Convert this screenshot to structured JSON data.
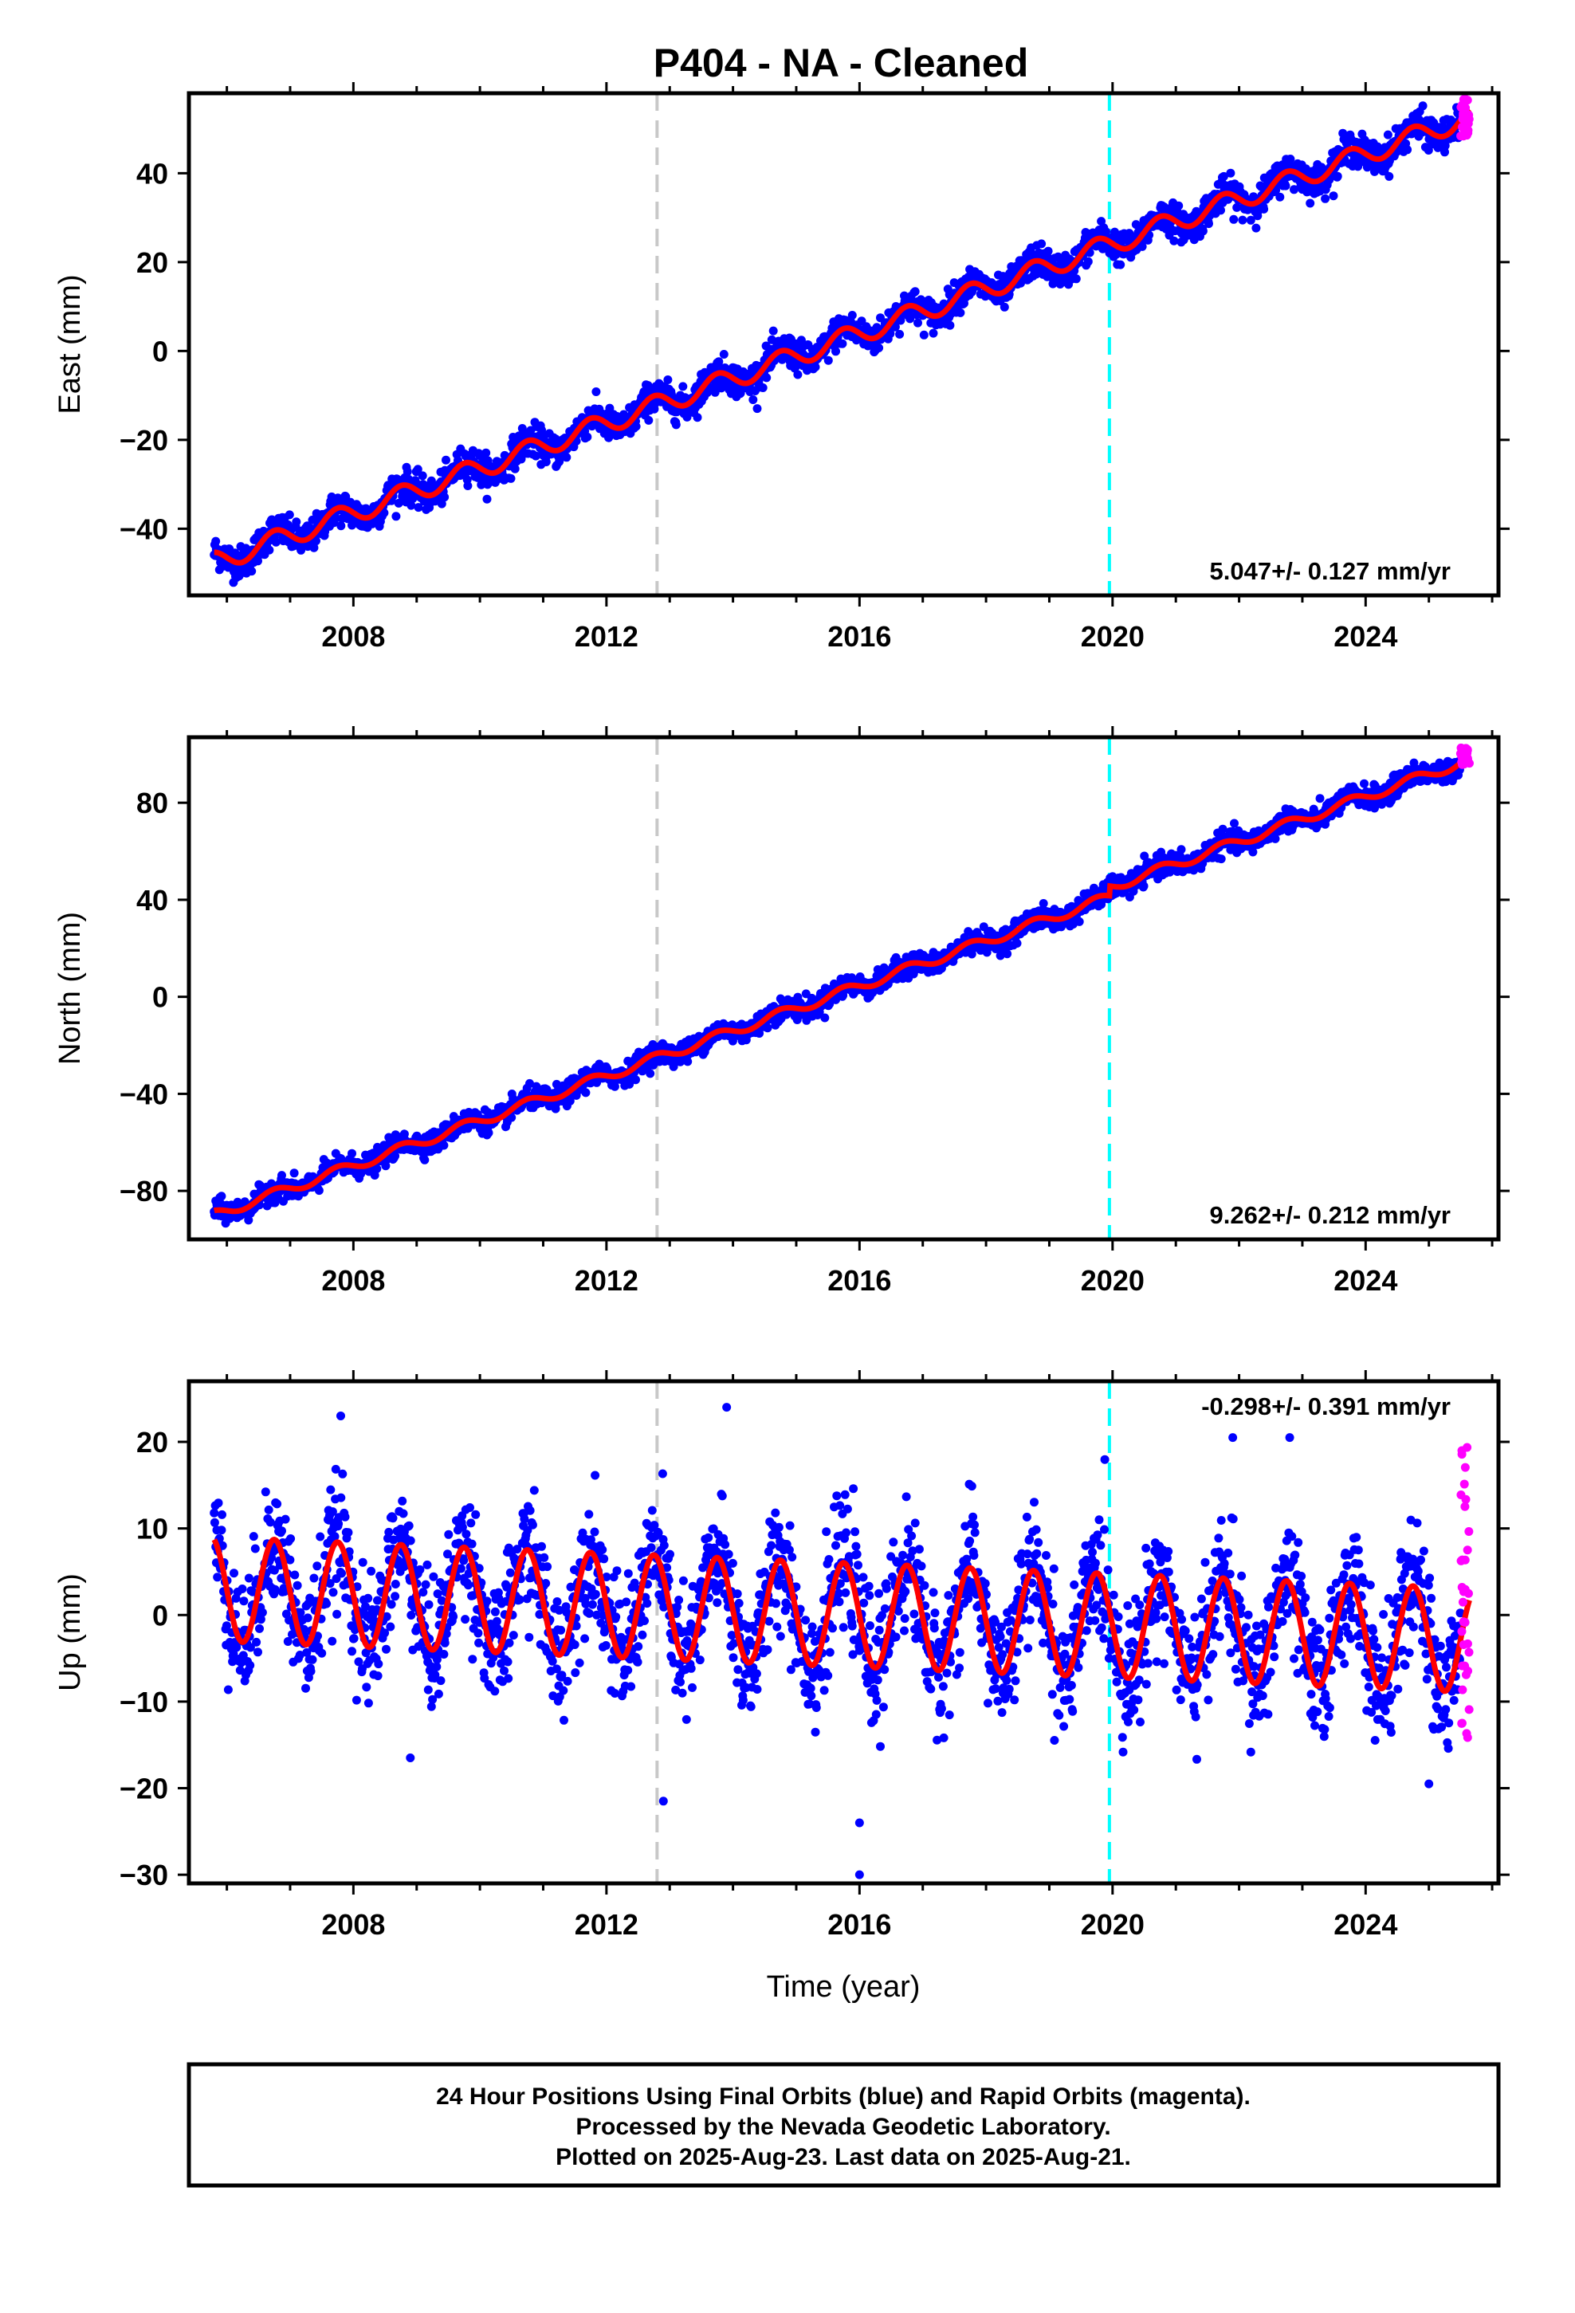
{
  "title": "P404  - NA - Cleaned",
  "xlabel": "Time (year)",
  "footer": {
    "line1": "24 Hour Positions Using Final Orbits (blue) and Rapid Orbits (magenta).",
    "line2": "Processed by the Nevada Geodetic Laboratory.",
    "line3": "Plotted on 2025-Aug-23. Last data on 2025-Aug-21."
  },
  "colors": {
    "final_orbits": "#0000ff",
    "rapid_orbits": "#ff00ff",
    "model_fit": "#ff0000",
    "event_line_1": "#c8c8c8",
    "event_line_2": "#00ffff"
  },
  "chart_data": [
    {
      "type": "scatter",
      "component": "east",
      "ylabel": "East (mm)",
      "rate_label": "5.047+/- 0.127 mm/yr",
      "xlim": [
        2005.4,
        2026.1
      ],
      "ylim": [
        -55,
        58
      ],
      "yticks": [
        -40,
        -20,
        0,
        20,
        40
      ],
      "yticklabels": [
        "−40",
        "−20",
        "0",
        "20",
        "40"
      ],
      "xticks": [
        2008,
        2012,
        2016,
        2020,
        2024
      ],
      "xticklabels": [
        "2008",
        "2012",
        "2016",
        "2020",
        "2024"
      ],
      "model": {
        "y_at_start": -47.5,
        "x_start": 2005.8,
        "rate_mm_per_yr": 5.047,
        "annual_amplitude": 2.3
      },
      "series": [
        {
          "name": "Final Orbits",
          "color": "#0000ff",
          "x_range": [
            2005.8,
            2025.5
          ],
          "scatter_mm": 1.8
        },
        {
          "name": "Rapid Orbits",
          "color": "#ff00ff",
          "x_range": [
            2025.5,
            2025.64
          ],
          "y_range": [
            48,
            57
          ]
        }
      ],
      "event_lines": [
        {
          "x": 2012.8,
          "color": "#c8c8c8"
        },
        {
          "x": 2019.95,
          "color": "#00ffff"
        }
      ]
    },
    {
      "type": "scatter",
      "component": "north",
      "ylabel": "North (mm)",
      "rate_label": "9.262+/- 0.212 mm/yr",
      "xlim": [
        2005.4,
        2026.1
      ],
      "ylim": [
        -100,
        107
      ],
      "yticks": [
        -80,
        -40,
        0,
        40,
        80
      ],
      "yticklabels": [
        "−80",
        "−40",
        "0",
        "40",
        "80"
      ],
      "xticks": [
        2008,
        2012,
        2016,
        2020,
        2024
      ],
      "xticklabels": [
        "2008",
        "2012",
        "2016",
        "2020",
        "2024"
      ],
      "model": {
        "y_at_start": -90,
        "x_start": 2005.8,
        "rate_mm_per_yr": 9.262,
        "annual_amplitude": 2.0,
        "offset_at_2019_95": 4
      },
      "series": [
        {
          "name": "Final Orbits",
          "color": "#0000ff",
          "x_range": [
            2005.8,
            2025.5
          ],
          "scatter_mm": 2.2
        },
        {
          "name": "Rapid Orbits",
          "color": "#ff00ff",
          "x_range": [
            2025.5,
            2025.64
          ],
          "y_range": [
            95,
            103
          ]
        }
      ],
      "event_lines": [
        {
          "x": 2012.8,
          "color": "#c8c8c8"
        },
        {
          "x": 2019.95,
          "color": "#00ffff"
        }
      ]
    },
    {
      "type": "scatter",
      "component": "up",
      "ylabel": "Up (mm)",
      "rate_label": "-0.298+/- 0.391 mm/yr",
      "xlim": [
        2005.4,
        2026.1
      ],
      "ylim": [
        -31,
        27
      ],
      "yticks": [
        -30,
        -20,
        -10,
        0,
        10,
        20
      ],
      "yticklabels": [
        "−30",
        "−20",
        "−10",
        "0",
        "10",
        "20"
      ],
      "xticks": [
        2008,
        2012,
        2016,
        2020,
        2024
      ],
      "xticklabels": [
        "2008",
        "2012",
        "2016",
        "2020",
        "2024"
      ],
      "model": {
        "y_at_start": 3.0,
        "x_start": 2005.8,
        "rate_mm_per_yr": -0.298,
        "annual_amplitude": 6.0
      },
      "series": [
        {
          "name": "Final Orbits",
          "color": "#0000ff",
          "x_range": [
            2005.8,
            2025.5
          ],
          "scatter_mm": 3.5
        },
        {
          "name": "Rapid Orbits",
          "color": "#ff00ff",
          "x_range": [
            2025.5,
            2025.64
          ],
          "y_range": [
            -16,
            26
          ]
        }
      ],
      "outliers": [
        {
          "x": 2007.8,
          "y": 23
        },
        {
          "x": 2008.9,
          "y": -16.5
        },
        {
          "x": 2012.9,
          "y": -21.5
        },
        {
          "x": 2013.9,
          "y": 24
        },
        {
          "x": 2016.0,
          "y": -24
        },
        {
          "x": 2016.0,
          "y": -30
        },
        {
          "x": 2021.9,
          "y": 20.5
        },
        {
          "x": 2022.8,
          "y": 20.5
        },
        {
          "x": 2025.0,
          "y": -19.5
        }
      ],
      "event_lines": [
        {
          "x": 2012.8,
          "color": "#c8c8c8"
        },
        {
          "x": 2019.95,
          "color": "#00ffff"
        }
      ]
    }
  ]
}
